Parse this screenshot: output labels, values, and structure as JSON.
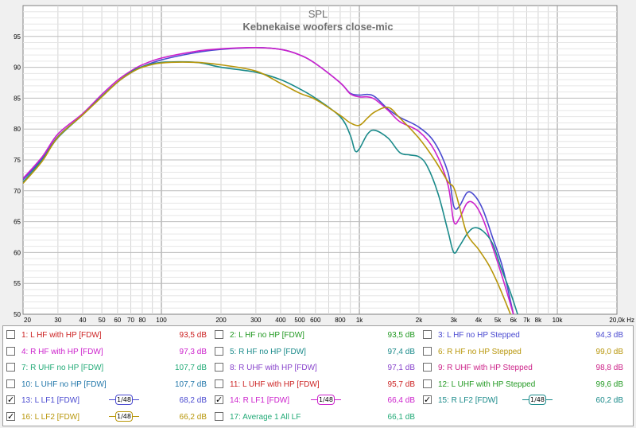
{
  "chart_data": {
    "type": "line",
    "title": "SPL",
    "subtitle": "Kebnekaise woofers close-mic",
    "xlabel": "",
    "ylabel": "",
    "x_unit": "Hz",
    "x_scale": "log",
    "xlim": [
      20,
      20000
    ],
    "ylim": [
      50,
      100
    ],
    "grid": true,
    "y_ticks": [
      "95",
      "90",
      "85",
      "80",
      "75",
      "70",
      "65",
      "60",
      "55",
      "50"
    ],
    "x_ticks": [
      {
        "v": 20,
        "label": "20"
      },
      {
        "v": 30,
        "label": "30"
      },
      {
        "v": 40,
        "label": "40"
      },
      {
        "v": 50,
        "label": "50"
      },
      {
        "v": 60,
        "label": "60"
      },
      {
        "v": 70,
        "label": "70"
      },
      {
        "v": 80,
        "label": "80"
      },
      {
        "v": 100,
        "label": "100"
      },
      {
        "v": 200,
        "label": "200"
      },
      {
        "v": 300,
        "label": "300"
      },
      {
        "v": 400,
        "label": "400"
      },
      {
        "v": 500,
        "label": "500"
      },
      {
        "v": 600,
        "label": "600"
      },
      {
        "v": 800,
        "label": "800"
      },
      {
        "v": 1000,
        "label": "1k"
      },
      {
        "v": 2000,
        "label": "2k"
      },
      {
        "v": 3000,
        "label": "3k"
      },
      {
        "v": 4000,
        "label": "4k"
      },
      {
        "v": 5000,
        "label": "5k"
      },
      {
        "v": 6000,
        "label": "6k"
      },
      {
        "v": 7000,
        "label": "7k"
      },
      {
        "v": 8000,
        "label": "8k"
      },
      {
        "v": 10000,
        "label": "10k"
      },
      {
        "v": 20000,
        "label": "20,0k Hz"
      }
    ],
    "series": [
      {
        "id": "s13",
        "name": "13: L LF1 [FDW]",
        "color": "#4a4ad0",
        "x": [
          20,
          25,
          30,
          40,
          50,
          60,
          70,
          80,
          100,
          150,
          200,
          300,
          400,
          500,
          600,
          800,
          900,
          1000,
          1100,
          1200,
          1400,
          1600,
          2000,
          2400,
          2800,
          3000,
          3200,
          3500,
          3800,
          4200,
          4700,
          5300,
          6000
        ],
        "y": [
          71.8,
          75.2,
          78.8,
          82.3,
          85.3,
          87.6,
          89.1,
          90.1,
          91.2,
          92.4,
          92.9,
          93.2,
          92.9,
          92.0,
          90.6,
          87.5,
          85.8,
          85.5,
          85.6,
          85.2,
          83.2,
          81.9,
          80.3,
          77.8,
          73.0,
          67.5,
          67.5,
          69.7,
          69.3,
          67.0,
          62.5,
          57.5,
          50.0
        ]
      },
      {
        "id": "s14",
        "name": "14: R LF1 [FDW]",
        "color": "#cc22cc",
        "x": [
          20,
          25,
          30,
          40,
          50,
          60,
          70,
          80,
          100,
          150,
          200,
          300,
          400,
          500,
          600,
          800,
          900,
          1000,
          1100,
          1200,
          1400,
          1600,
          2000,
          2400,
          2800,
          3000,
          3200,
          3500,
          3800,
          4200,
          4700,
          5300,
          6000
        ],
        "y": [
          72.0,
          75.5,
          79.2,
          82.5,
          85.6,
          87.9,
          89.4,
          90.4,
          91.5,
          92.6,
          93.0,
          93.2,
          92.9,
          92.0,
          90.6,
          87.5,
          85.7,
          85.2,
          85.2,
          84.8,
          83.0,
          81.2,
          79.6,
          76.5,
          71.0,
          65.0,
          65.5,
          68.0,
          67.9,
          65.5,
          61.0,
          55.8,
          50.0
        ]
      },
      {
        "id": "s15",
        "name": "15: R LF2 [FDW]",
        "color": "#1a8a8a",
        "x": [
          20,
          25,
          30,
          40,
          50,
          60,
          70,
          80,
          100,
          150,
          200,
          300,
          400,
          500,
          600,
          800,
          900,
          950,
          1000,
          1100,
          1200,
          1400,
          1600,
          1800,
          2000,
          2200,
          2500,
          2800,
          3000,
          3200,
          3500,
          3800,
          4200,
          4700,
          5200,
          5800,
          6300
        ],
        "y": [
          71.4,
          75.0,
          78.6,
          82.3,
          85.3,
          87.6,
          89.2,
          90.1,
          90.8,
          90.8,
          90.0,
          89.2,
          88.0,
          86.5,
          85.0,
          82.0,
          79.0,
          76.5,
          76.8,
          79.2,
          79.8,
          78.5,
          76.2,
          75.8,
          75.5,
          74.0,
          69.5,
          63.5,
          60.0,
          61.0,
          63.0,
          64.0,
          63.5,
          61.5,
          57.5,
          53.5,
          50.0
        ]
      },
      {
        "id": "s16",
        "name": "16: L LF2 [FDW]",
        "color": "#b8960a",
        "x": [
          20,
          25,
          30,
          40,
          50,
          60,
          70,
          80,
          100,
          150,
          200,
          300,
          400,
          500,
          600,
          800,
          900,
          1000,
          1100,
          1200,
          1400,
          1600,
          2000,
          2400,
          2800,
          3000,
          3200,
          3500,
          4000,
          4500,
          5000,
          5800
        ],
        "y": [
          71.2,
          74.8,
          78.7,
          82.3,
          85.2,
          87.6,
          89.1,
          90.0,
          90.7,
          90.8,
          90.4,
          89.4,
          87.4,
          85.8,
          84.8,
          82.2,
          81.0,
          80.6,
          81.8,
          82.8,
          83.5,
          81.8,
          78.5,
          75.0,
          71.5,
          70.5,
          67.5,
          63.0,
          60.5,
          58.0,
          55.0,
          50.0
        ]
      }
    ]
  },
  "legend": [
    [
      {
        "label": "1: L HF with HP [FDW]",
        "value": "93,5 dB",
        "color": "#cc2222",
        "checked": false
      },
      {
        "label": "2: L HF no HP [FDW]",
        "value": "93,5 dB",
        "color": "#229922",
        "checked": false
      },
      {
        "label": "3: L HF no HP Stepped",
        "value": "94,3 dB",
        "color": "#4a4ad0",
        "checked": false
      }
    ],
    [
      {
        "label": "4: R HF with HP [FDW]",
        "value": "97,3 dB",
        "color": "#cc22cc",
        "checked": false
      },
      {
        "label": "5: R HF no HP [FDW]",
        "value": "97,4 dB",
        "color": "#1a8a8a",
        "checked": false
      },
      {
        "label": "6: R HF no HP Stepped",
        "value": "99,0 dB",
        "color": "#b8960a",
        "checked": false
      }
    ],
    [
      {
        "label": "7: R UHF no HP [FDW]",
        "value": "107,7 dB",
        "color": "#22aa77",
        "checked": false
      },
      {
        "label": "8: R UHF with HP [FDW]",
        "value": "97,1 dB",
        "color": "#8844cc",
        "checked": false
      },
      {
        "label": "9: R UHF with HP Stepped",
        "value": "98,8 dB",
        "color": "#cc2288",
        "checked": false
      }
    ],
    [
      {
        "label": "10: L UHF no HP [FDW]",
        "value": "107,7 dB",
        "color": "#2277aa",
        "checked": false
      },
      {
        "label": "11: L UHF with HP [FDW]",
        "value": "95,7 dB",
        "color": "#cc2222",
        "checked": false
      },
      {
        "label": "12: L UHF with HP Stepped",
        "value": "99,6 dB",
        "color": "#229922",
        "checked": false
      }
    ],
    [
      {
        "label": "13: L LF1 [FDW]",
        "value": "68,2 dB",
        "color": "#4a4ad0",
        "checked": true,
        "smoothing": "1/48"
      },
      {
        "label": "14: R LF1 [FDW]",
        "value": "66,4 dB",
        "color": "#cc22cc",
        "checked": true,
        "smoothing": "1/48"
      },
      {
        "label": "15: R LF2 [FDW]",
        "value": "60,2 dB",
        "color": "#1a8a8a",
        "checked": true,
        "smoothing": "1/48"
      }
    ],
    [
      {
        "label": "16: L LF2 [FDW]",
        "value": "66,2 dB",
        "color": "#b8960a",
        "checked": true,
        "smoothing": "1/48"
      },
      {
        "label": "17: Average 1 All LF",
        "value": "66,1 dB",
        "color": "#22aa77",
        "checked": false
      }
    ]
  ],
  "check_mark": "✓"
}
